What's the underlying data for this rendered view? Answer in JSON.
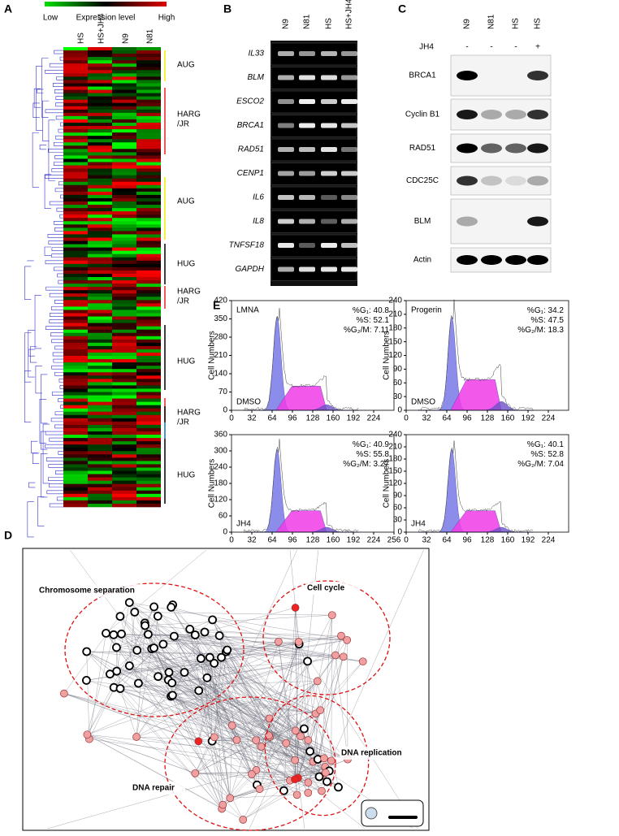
{
  "panel_a": {
    "letter": "A",
    "legend": {
      "low": "Low",
      "label": "Expression level",
      "high": "High"
    },
    "columns": [
      "HS",
      "HS+JH4",
      "N9",
      "N81"
    ],
    "clusters": [
      [
        "AUG"
      ],
      [
        "HARG",
        "/JR"
      ],
      [
        "AUG"
      ],
      [
        "HUG"
      ],
      [
        "HARG",
        "/JR"
      ],
      [
        "HUG"
      ],
      [
        "HARG",
        "/JR"
      ],
      [
        "HUG"
      ]
    ]
  },
  "panel_b": {
    "letter": "B",
    "columns": [
      "N9",
      "N81",
      "HS",
      "HS+JH4"
    ],
    "genes": [
      "IL33",
      "BLM",
      "ESCO2",
      "BRCA1",
      "RAD51",
      "CENP1",
      "IL6",
      "IL8",
      "TNFSF18",
      "GAPDH"
    ]
  },
  "panel_c": {
    "letter": "C",
    "columns": [
      "N9",
      "N81",
      "HS",
      "HS"
    ],
    "treatment": "JH4",
    "signs": [
      "-",
      "-",
      "-",
      "+"
    ],
    "proteins": [
      "BRCA1",
      "Cyclin B1",
      "RAD51",
      "CDC25C",
      "BLM",
      "Actin"
    ]
  },
  "panel_d": {
    "letter": "D",
    "clusters": [
      "Chromosome separation",
      "Cell cycle",
      "DNA replication",
      "DNA repair"
    ]
  },
  "panel_e": {
    "letter": "E",
    "y_label": "Cell Numbers",
    "stat_labels": [
      "%G₁:",
      "%S:",
      "%G₂/M:"
    ],
    "plots": [
      {
        "name": "LMNA",
        "condition": "DMSO",
        "stats": [
          40.8,
          52.1,
          7.11
        ],
        "yticks": [
          0,
          70,
          140,
          210,
          280,
          350,
          420
        ],
        "xticks": [
          0,
          32,
          64,
          96,
          128,
          160,
          192,
          224
        ]
      },
      {
        "name": "Progerin",
        "condition": "DMSO",
        "stats": [
          34.2,
          47.5,
          18.3
        ],
        "yticks": [
          0,
          30,
          60,
          90,
          120,
          150,
          180,
          210,
          240
        ],
        "xticks": [
          0,
          32,
          64,
          96,
          128,
          160,
          192,
          224
        ]
      },
      {
        "condition": "JH4",
        "stats": [
          40.9,
          55.8,
          3.27
        ],
        "yticks": [
          0,
          60,
          120,
          180,
          240,
          300,
          360
        ],
        "xticks": [
          0,
          32,
          64,
          96,
          128,
          160,
          192,
          224,
          256
        ]
      },
      {
        "condition": "JH4",
        "stats": [
          40.1,
          52.8,
          7.04
        ],
        "yticks": [
          0,
          30,
          60,
          90,
          120,
          150,
          180,
          210,
          240
        ],
        "xticks": [
          0,
          32,
          64,
          96,
          128,
          160,
          192,
          224
        ]
      }
    ]
  }
}
